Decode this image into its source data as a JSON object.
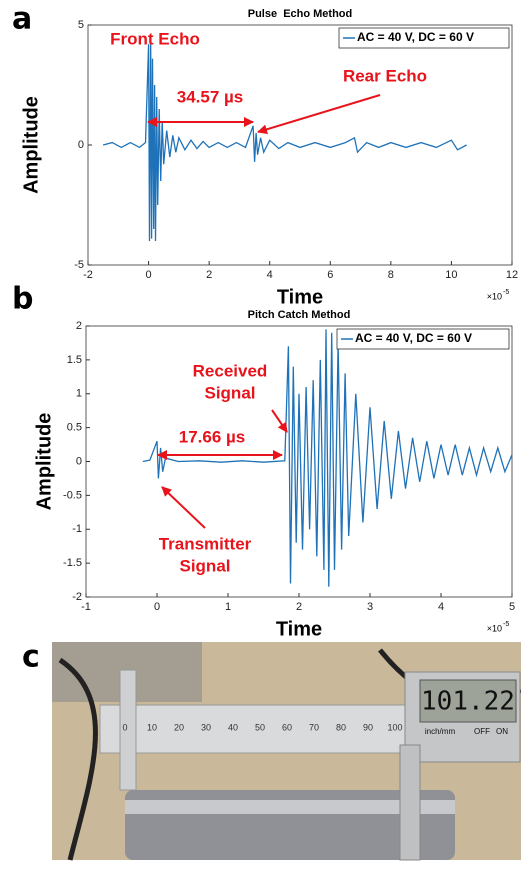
{
  "chart_data": [
    {
      "type": "line",
      "panel_label": "a",
      "title": "Pulse  Echo Method",
      "xlabel": "Time",
      "ylabel": "Amplitude",
      "x_multiplier": {
        "base": "×10",
        "exponent": "-5"
      },
      "xlim": [
        -2,
        12
      ],
      "xticks": [
        -2,
        0,
        2,
        4,
        6,
        8,
        10,
        12
      ],
      "ylim": [
        -5,
        5
      ],
      "yticks": [
        -5,
        0,
        5
      ],
      "legend": "upper right",
      "series": [
        {
          "name": "AC = 40 V, DC = 60 V",
          "color": "#1f72b8",
          "x": [
            -1.5,
            -1.2,
            -0.9,
            -0.6,
            -0.3,
            -0.1,
            0,
            0.03,
            0.07,
            0.1,
            0.13,
            0.17,
            0.2,
            0.23,
            0.27,
            0.3,
            0.35,
            0.4,
            0.45,
            0.5,
            0.6,
            0.7,
            0.8,
            0.9,
            1.0,
            1.2,
            1.4,
            1.6,
            1.8,
            2.0,
            2.3,
            2.6,
            2.9,
            3.2,
            3.45,
            3.5,
            3.55,
            3.6,
            3.7,
            3.8,
            4.0,
            4.3,
            4.6,
            5,
            5.5,
            6,
            6.5,
            6.8,
            6.9,
            7.2,
            7.6,
            8,
            8.5,
            9,
            9.5,
            10,
            10.2,
            10.5
          ],
          "values": [
            0,
            0.1,
            -0.1,
            0.1,
            -0.1,
            0.1,
            4.2,
            -4,
            4.2,
            -3.9,
            3.6,
            -3.5,
            2.5,
            -4,
            2,
            -2.5,
            1.5,
            -1.5,
            1,
            -0.8,
            0.6,
            -0.5,
            0.4,
            -0.3,
            0.3,
            -0.2,
            0.2,
            -0.15,
            0.15,
            -0.1,
            0.1,
            -0.1,
            0.1,
            -0.1,
            0.8,
            -0.7,
            0.5,
            -0.4,
            0.3,
            -0.3,
            0.2,
            -0.15,
            0.1,
            -0.1,
            0.1,
            -0.1,
            0.1,
            0.3,
            -0.3,
            0.1,
            -0.1,
            0.1,
            -0.1,
            0.1,
            -0.1,
            0.2,
            -0.2,
            0
          ]
        }
      ],
      "annotations": [
        {
          "text": "Front Echo"
        },
        {
          "text": "34.57 µs"
        },
        {
          "text": "Rear Echo"
        }
      ]
    },
    {
      "type": "line",
      "panel_label": "b",
      "title": "Pitch Catch Method",
      "xlabel": "Time",
      "ylabel": "Amplitude",
      "x_multiplier": {
        "base": "×10",
        "exponent": "-5"
      },
      "xlim": [
        -1,
        5
      ],
      "xticks": [
        -1,
        0,
        1,
        2,
        3,
        4,
        5
      ],
      "ylim": [
        -2,
        2
      ],
      "yticks": [
        -2,
        -1.5,
        -1,
        -0.5,
        0,
        0.5,
        1,
        1.5,
        2
      ],
      "legend": "upper right",
      "series": [
        {
          "name": "AC = 40 V, DC = 60 V",
          "color": "#1f72b8",
          "x": [
            -0.2,
            -0.1,
            0,
            0.02,
            0.05,
            0.08,
            0.12,
            0.3,
            0.6,
            0.9,
            1.2,
            1.5,
            1.8,
            1.85,
            1.88,
            1.92,
            1.96,
            2.0,
            2.05,
            2.1,
            2.15,
            2.2,
            2.25,
            2.3,
            2.35,
            2.38,
            2.42,
            2.46,
            2.5,
            2.55,
            2.6,
            2.65,
            2.7,
            2.8,
            2.9,
            3.0,
            3.1,
            3.2,
            3.3,
            3.4,
            3.5,
            3.6,
            3.7,
            3.8,
            3.9,
            4.0,
            4.1,
            4.2,
            4.3,
            4.4,
            4.5,
            4.6,
            4.7,
            4.8,
            4.9,
            5.0
          ],
          "values": [
            0,
            0.02,
            0.3,
            -0.25,
            0.2,
            -0.15,
            0.05,
            0,
            0.01,
            -0.01,
            0.01,
            -0.01,
            0.01,
            1.7,
            -1.8,
            1.4,
            -1.2,
            1.0,
            -1.3,
            1.1,
            -1.0,
            1.2,
            -1.4,
            1.5,
            -1.6,
            1.95,
            -1.85,
            1.9,
            -1.6,
            1.75,
            -1.3,
            1.3,
            -1.1,
            1.0,
            -0.9,
            0.8,
            -0.7,
            0.6,
            -0.55,
            0.45,
            -0.4,
            0.35,
            -0.3,
            0.3,
            -0.25,
            0.25,
            -0.2,
            0.25,
            -0.2,
            0.2,
            -0.2,
            0.2,
            -0.15,
            0.2,
            -0.15,
            0.1
          ]
        }
      ],
      "annotations": [
        {
          "lines": [
            "Received",
            "Signal"
          ]
        },
        {
          "text": "17.66 µs"
        },
        {
          "lines": [
            "Transmitter",
            "Signal"
          ]
        }
      ]
    }
  ],
  "photo": {
    "panel_label": "c",
    "display_reading": "101.22",
    "display_unit": "inch/mm",
    "buttons": [
      "OFF",
      "ON"
    ],
    "scale_labels": [
      "0",
      "10",
      "20",
      "30",
      "40",
      "50",
      "60",
      "70",
      "80",
      "90",
      "100"
    ]
  }
}
